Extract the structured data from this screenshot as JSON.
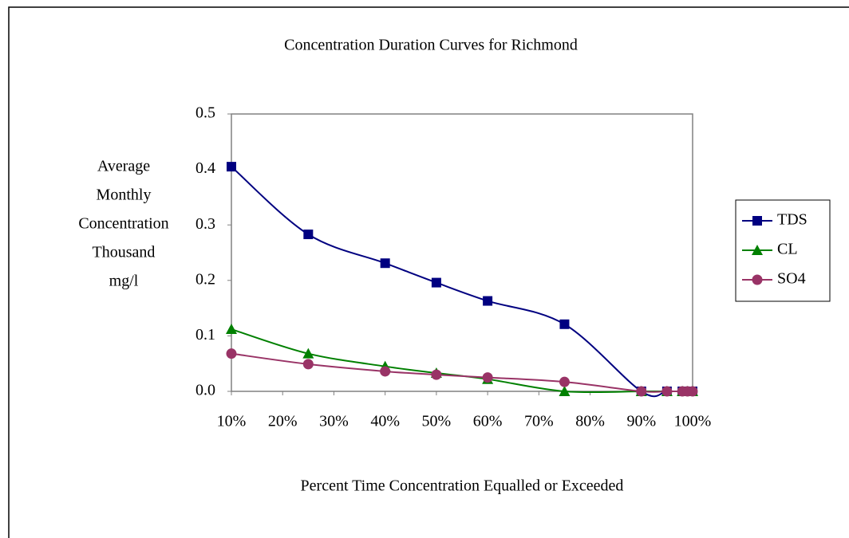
{
  "chart_data": {
    "type": "line",
    "title": "Concentration Duration Curves for Richmond",
    "y_label": [
      "Average",
      "Monthly",
      "Concentration",
      "Thousand",
      "mg/l"
    ],
    "x_label": "Percent Time Concentration Equalled or Exceeded",
    "x": [
      10,
      25,
      40,
      50,
      60,
      75,
      90,
      95,
      98,
      99,
      100
    ],
    "series": [
      {
        "name": "TDS",
        "color": "#000080",
        "marker": "square",
        "values": [
          0.405,
          0.283,
          0.231,
          0.196,
          0.163,
          0.121,
          0,
          0,
          0,
          0,
          0
        ]
      },
      {
        "name": "CL",
        "color": "#008000",
        "marker": "triangle",
        "values": [
          0.112,
          0.068,
          0.045,
          0.033,
          0.022,
          0,
          0,
          0,
          0,
          0,
          0
        ]
      },
      {
        "name": "SO4",
        "color": "#993366",
        "marker": "circle",
        "values": [
          0.068,
          0.049,
          0.036,
          0.03,
          0.025,
          0.017,
          0,
          0,
          0,
          0,
          0
        ]
      }
    ],
    "xlim": [
      10,
      100
    ],
    "xticks": [
      {
        "value": 10,
        "label": "10%"
      },
      {
        "value": 20,
        "label": "20%"
      },
      {
        "value": 30,
        "label": "30%"
      },
      {
        "value": 40,
        "label": "40%"
      },
      {
        "value": 50,
        "label": "50%"
      },
      {
        "value": 60,
        "label": "60%"
      },
      {
        "value": 70,
        "label": "70%"
      },
      {
        "value": 80,
        "label": "80%"
      },
      {
        "value": 90,
        "label": "90%"
      },
      {
        "value": 100,
        "label": "100%"
      }
    ],
    "ylim": [
      0,
      0.5
    ],
    "yticks": [
      {
        "value": 0,
        "label": "0.0"
      },
      0.1,
      0.2,
      0.3,
      0.4,
      0.5
    ],
    "legend": "right"
  }
}
